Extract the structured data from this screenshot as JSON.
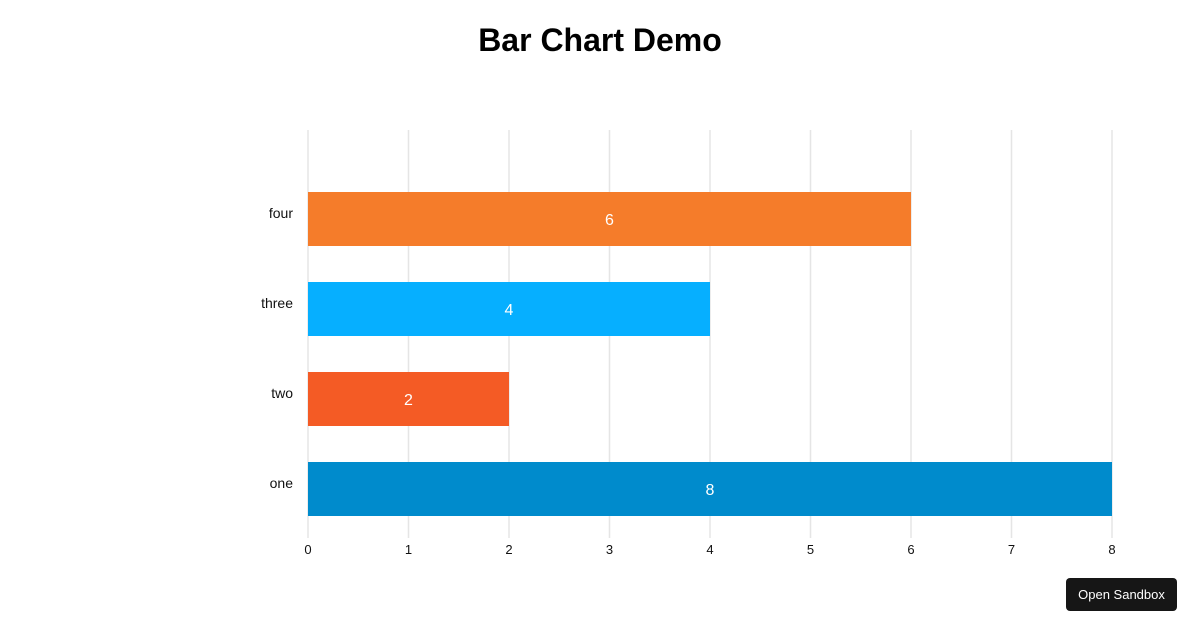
{
  "page": {
    "title": "Bar Chart Demo",
    "sandbox_label": "Open Sandbox"
  },
  "chart_data": {
    "type": "bar",
    "orientation": "horizontal",
    "title": "Bar Chart Demo",
    "categories": [
      "one",
      "two",
      "three",
      "four"
    ],
    "values": [
      8,
      2,
      4,
      6
    ],
    "colors": [
      "#008bcc",
      "#f45b25",
      "#06afff",
      "#f57c2a"
    ],
    "data_labels": true,
    "xlim": [
      0,
      8
    ],
    "x_ticks": [
      0,
      1,
      2,
      3,
      4,
      5,
      6,
      7,
      8
    ],
    "xlabel": "",
    "ylabel": "",
    "grid": "vertical",
    "legend": "none"
  }
}
